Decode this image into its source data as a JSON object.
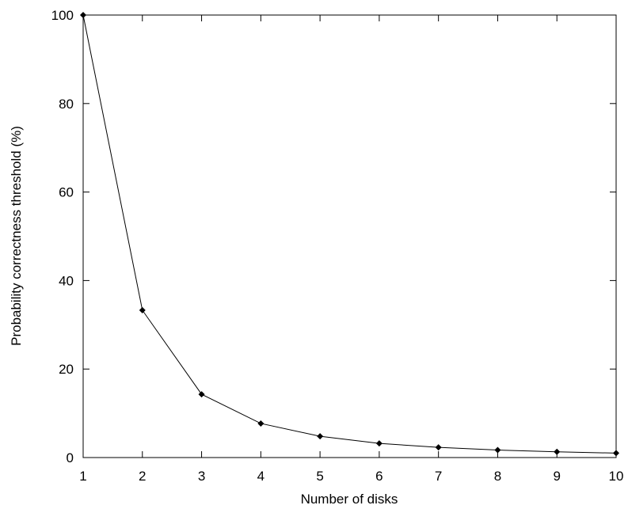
{
  "chart_data": {
    "type": "line",
    "title": "",
    "xlabel": "Number of disks",
    "ylabel": "Probability correctness threshold (%)",
    "xlim": [
      1,
      10
    ],
    "ylim": [
      0,
      100
    ],
    "xticks": [
      1,
      2,
      3,
      4,
      5,
      6,
      7,
      8,
      9,
      10
    ],
    "yticks": [
      0,
      20,
      40,
      60,
      80,
      100
    ],
    "grid": false,
    "legend": "none",
    "marker": "diamond",
    "colors": {
      "line": "#000000",
      "frame": "#000000",
      "background": "#ffffff"
    },
    "series": [
      {
        "x": [
          1,
          2,
          3,
          4,
          5,
          6,
          7,
          8,
          9,
          10
        ],
        "y": [
          100,
          33.3,
          14.3,
          7.7,
          4.8,
          3.2,
          2.3,
          1.7,
          1.3,
          1.0
        ]
      }
    ]
  }
}
